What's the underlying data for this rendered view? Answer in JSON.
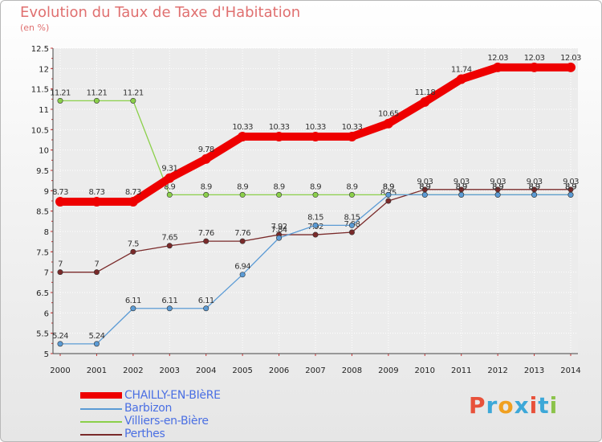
{
  "header": {
    "title": "Evolution du Taux de Taxe d'Habitation",
    "subtitle": "(en %)"
  },
  "brand": {
    "letters": [
      "P",
      "r",
      "o",
      "x",
      "i",
      "t",
      "i"
    ],
    "colors": [
      "#e8513a",
      "#3da8d8",
      "#f0a020",
      "#3da8d8",
      "#e8513a",
      "#3da8d8",
      "#8bc34a"
    ]
  },
  "chart_data": {
    "type": "line",
    "title": "Evolution du Taux de Taxe d'Habitation",
    "ylabel": "(en %)",
    "xlabel": "",
    "x": [
      2000,
      2001,
      2002,
      2003,
      2004,
      2005,
      2006,
      2007,
      2008,
      2009,
      2010,
      2011,
      2012,
      2013,
      2014
    ],
    "ylim": [
      5,
      12.5
    ],
    "yticks": [
      "5",
      "5.5",
      "6",
      "6.5",
      "7",
      "7.5",
      "8",
      "8.5",
      "9",
      "9.5",
      "10",
      "10.5",
      "11",
      "11.5",
      "12",
      "12.5"
    ],
    "grid": true,
    "legend_position": "bottom-left",
    "series": [
      {
        "name": "CHAILLY-EN-BIèRE",
        "color": "#ee0000",
        "emphasis": true,
        "values": [
          8.73,
          8.73,
          8.73,
          9.31,
          9.78,
          10.33,
          10.33,
          10.33,
          10.33,
          10.65,
          11.18,
          11.74,
          12.03,
          12.03,
          12.03
        ],
        "labels": [
          "8.73",
          "8.73",
          "8.73",
          "9.31",
          "9.78",
          "10.33",
          "10.33",
          "10.33",
          "10.33",
          "10.65",
          "11.18",
          "11.74",
          "12.03",
          "12.03",
          "12.03"
        ]
      },
      {
        "name": "Barbizon",
        "color": "#5b9bd5",
        "emphasis": false,
        "values": [
          5.24,
          5.24,
          6.11,
          6.11,
          6.11,
          6.94,
          7.84,
          8.15,
          8.15,
          8.9,
          8.9,
          8.9,
          8.9,
          8.9,
          8.9
        ],
        "labels": [
          "5.24",
          "5.24",
          "6.11",
          "6.11",
          "6.11",
          "6.94",
          "7.84",
          "8.15",
          "8.15",
          "8.9",
          "8.9",
          "8.9",
          "8.9",
          "8.9",
          "8.9"
        ]
      },
      {
        "name": "Villiers-en-Bière",
        "color": "#8bd04a",
        "emphasis": false,
        "values": [
          11.21,
          11.21,
          11.21,
          8.9,
          8.9,
          8.9,
          8.9,
          8.9,
          8.9,
          8.9,
          8.9,
          8.9,
          8.9,
          8.9,
          8.9
        ],
        "labels": [
          "11.21",
          "11.21",
          "11.21",
          "8.9",
          "8.9",
          "8.9",
          "8.9",
          "8.9",
          "8.9",
          "8.9",
          "8.9",
          "8.9",
          "8.9",
          "8.9",
          "8.9"
        ]
      },
      {
        "name": "Perthes",
        "color": "#7a2a2a",
        "emphasis": false,
        "values": [
          7,
          7,
          7.5,
          7.65,
          7.76,
          7.76,
          7.92,
          7.92,
          7.98,
          8.75,
          9.03,
          9.03,
          9.03,
          9.03,
          9.03
        ],
        "labels": [
          "7",
          "7",
          "7.5",
          "7.65",
          "7.76",
          "7.76",
          "7.92",
          "7.92",
          "7.98",
          "8.75",
          "9.03",
          "9.03",
          "9.03",
          "9.03",
          "9.03"
        ]
      }
    ]
  }
}
